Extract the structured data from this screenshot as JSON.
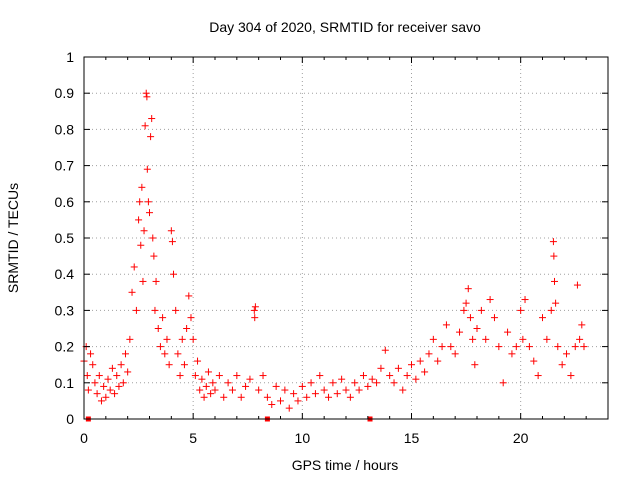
{
  "chart_data": {
    "type": "scatter",
    "title": "Day 304 of 2020, SRMTID for receiver savo",
    "xlabel": "GPS time / hours",
    "ylabel": "SRMTID / TECUs",
    "xlim": [
      0,
      24
    ],
    "ylim": [
      0,
      1
    ],
    "x_ticks": [
      0,
      5,
      10,
      15,
      20
    ],
    "x_tick_labels": [
      "0",
      "5",
      "10",
      "15",
      "20"
    ],
    "y_ticks": [
      0,
      0.1,
      0.2,
      0.3,
      0.4,
      0.5,
      0.6,
      0.7,
      0.8,
      0.9,
      1
    ],
    "y_tick_labels": [
      "0",
      "0.1",
      "0.2",
      "0.3",
      "0.4",
      "0.5",
      "0.6",
      "0.7",
      "0.8",
      "0.9",
      "1"
    ],
    "grid": true,
    "marker": "plus",
    "color": "#ff0000",
    "series": [
      {
        "name": "SRMTID",
        "points": [
          [
            0.0,
            0.16
          ],
          [
            0.1,
            0.2
          ],
          [
            0.15,
            0.12
          ],
          [
            0.2,
            0.08
          ],
          [
            0.3,
            0.18
          ],
          [
            0.4,
            0.15
          ],
          [
            0.5,
            0.1
          ],
          [
            0.6,
            0.07
          ],
          [
            0.7,
            0.12
          ],
          [
            0.8,
            0.05
          ],
          [
            0.9,
            0.09
          ],
          [
            1.0,
            0.06
          ],
          [
            1.1,
            0.11
          ],
          [
            1.2,
            0.08
          ],
          [
            1.3,
            0.14
          ],
          [
            1.4,
            0.07
          ],
          [
            1.5,
            0.12
          ],
          [
            1.6,
            0.09
          ],
          [
            1.7,
            0.15
          ],
          [
            1.8,
            0.1
          ],
          [
            1.9,
            0.18
          ],
          [
            2.0,
            0.13
          ],
          [
            2.1,
            0.22
          ],
          [
            2.2,
            0.35
          ],
          [
            2.3,
            0.42
          ],
          [
            2.4,
            0.3
          ],
          [
            2.5,
            0.55
          ],
          [
            2.55,
            0.6
          ],
          [
            2.6,
            0.48
          ],
          [
            2.65,
            0.64
          ],
          [
            2.7,
            0.38
          ],
          [
            2.75,
            0.52
          ],
          [
            2.8,
            0.81
          ],
          [
            2.85,
            0.9
          ],
          [
            2.88,
            0.89
          ],
          [
            2.9,
            0.69
          ],
          [
            2.95,
            0.6
          ],
          [
            3.0,
            0.57
          ],
          [
            3.05,
            0.78
          ],
          [
            3.1,
            0.83
          ],
          [
            3.15,
            0.5
          ],
          [
            3.2,
            0.45
          ],
          [
            3.25,
            0.3
          ],
          [
            3.3,
            0.38
          ],
          [
            3.4,
            0.25
          ],
          [
            3.5,
            0.2
          ],
          [
            3.6,
            0.28
          ],
          [
            3.7,
            0.18
          ],
          [
            3.8,
            0.22
          ],
          [
            3.9,
            0.15
          ],
          [
            4.0,
            0.52
          ],
          [
            4.05,
            0.49
          ],
          [
            4.1,
            0.4
          ],
          [
            4.2,
            0.3
          ],
          [
            4.3,
            0.18
          ],
          [
            4.4,
            0.12
          ],
          [
            4.5,
            0.22
          ],
          [
            4.6,
            0.15
          ],
          [
            4.7,
            0.25
          ],
          [
            4.8,
            0.34
          ],
          [
            4.9,
            0.28
          ],
          [
            5.0,
            0.22
          ],
          [
            5.1,
            0.12
          ],
          [
            5.2,
            0.16
          ],
          [
            5.3,
            0.08
          ],
          [
            5.4,
            0.11
          ],
          [
            5.5,
            0.06
          ],
          [
            5.6,
            0.09
          ],
          [
            5.7,
            0.13
          ],
          [
            5.8,
            0.07
          ],
          [
            5.9,
            0.1
          ],
          [
            6.0,
            0.08
          ],
          [
            6.2,
            0.12
          ],
          [
            6.4,
            0.06
          ],
          [
            6.6,
            0.1
          ],
          [
            6.8,
            0.08
          ],
          [
            7.0,
            0.12
          ],
          [
            7.2,
            0.06
          ],
          [
            7.4,
            0.09
          ],
          [
            7.6,
            0.11
          ],
          [
            7.8,
            0.3
          ],
          [
            7.82,
            0.28
          ],
          [
            7.85,
            0.31
          ],
          [
            8.0,
            0.08
          ],
          [
            8.2,
            0.12
          ],
          [
            8.4,
            0.06
          ],
          [
            8.6,
            0.04
          ],
          [
            8.8,
            0.09
          ],
          [
            9.0,
            0.05
          ],
          [
            9.2,
            0.08
          ],
          [
            9.4,
            0.03
          ],
          [
            9.6,
            0.07
          ],
          [
            9.8,
            0.05
          ],
          [
            10.0,
            0.09
          ],
          [
            10.2,
            0.06
          ],
          [
            10.4,
            0.1
          ],
          [
            10.6,
            0.07
          ],
          [
            10.8,
            0.12
          ],
          [
            11.0,
            0.08
          ],
          [
            11.2,
            0.06
          ],
          [
            11.4,
            0.1
          ],
          [
            11.6,
            0.07
          ],
          [
            11.8,
            0.11
          ],
          [
            12.0,
            0.08
          ],
          [
            12.2,
            0.06
          ],
          [
            12.4,
            0.1
          ],
          [
            12.6,
            0.08
          ],
          [
            12.8,
            0.12
          ],
          [
            13.0,
            0.09
          ],
          [
            13.2,
            0.11
          ],
          [
            13.4,
            0.1
          ],
          [
            13.6,
            0.14
          ],
          [
            13.8,
            0.19
          ],
          [
            14.0,
            0.12
          ],
          [
            14.2,
            0.1
          ],
          [
            14.4,
            0.14
          ],
          [
            14.6,
            0.08
          ],
          [
            14.8,
            0.12
          ],
          [
            15.0,
            0.15
          ],
          [
            15.2,
            0.11
          ],
          [
            15.4,
            0.16
          ],
          [
            15.6,
            0.13
          ],
          [
            15.8,
            0.18
          ],
          [
            16.0,
            0.22
          ],
          [
            16.2,
            0.16
          ],
          [
            16.4,
            0.2
          ],
          [
            16.6,
            0.26
          ],
          [
            16.8,
            0.2
          ],
          [
            17.0,
            0.18
          ],
          [
            17.2,
            0.24
          ],
          [
            17.4,
            0.3
          ],
          [
            17.5,
            0.32
          ],
          [
            17.6,
            0.36
          ],
          [
            17.7,
            0.28
          ],
          [
            17.8,
            0.22
          ],
          [
            17.9,
            0.15
          ],
          [
            18.0,
            0.25
          ],
          [
            18.2,
            0.3
          ],
          [
            18.4,
            0.22
          ],
          [
            18.6,
            0.33
          ],
          [
            18.8,
            0.28
          ],
          [
            19.0,
            0.2
          ],
          [
            19.2,
            0.1
          ],
          [
            19.4,
            0.24
          ],
          [
            19.6,
            0.18
          ],
          [
            19.8,
            0.2
          ],
          [
            20.0,
            0.3
          ],
          [
            20.1,
            0.22
          ],
          [
            20.2,
            0.33
          ],
          [
            20.4,
            0.2
          ],
          [
            20.6,
            0.16
          ],
          [
            20.8,
            0.12
          ],
          [
            21.0,
            0.28
          ],
          [
            21.2,
            0.22
          ],
          [
            21.4,
            0.3
          ],
          [
            21.5,
            0.49
          ],
          [
            21.52,
            0.45
          ],
          [
            21.55,
            0.38
          ],
          [
            21.6,
            0.32
          ],
          [
            21.7,
            0.2
          ],
          [
            21.9,
            0.15
          ],
          [
            22.1,
            0.18
          ],
          [
            22.3,
            0.12
          ],
          [
            22.5,
            0.2
          ],
          [
            22.6,
            0.37
          ],
          [
            22.7,
            0.22
          ],
          [
            22.8,
            0.26
          ],
          [
            22.9,
            0.2
          ]
        ]
      }
    ],
    "markers_on_axis": [
      0.2,
      8.4,
      13.1
    ]
  }
}
